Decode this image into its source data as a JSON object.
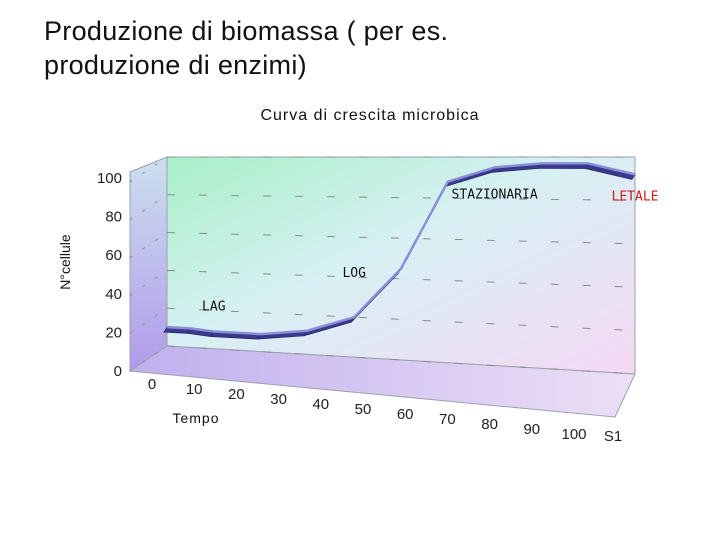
{
  "slide": {
    "title_line1": "Produzione di biomassa ( per es.",
    "title_line2": "produzione di enzimi)"
  },
  "colors": {
    "line_top": "#8a8ed8",
    "line_side": "#3a3a8c",
    "annotation_red": "#d21a1a"
  },
  "chart_data": {
    "type": "line",
    "title": "Curva di crescita microbica",
    "xlabel": "Tempo",
    "ylabel": "N°cellule",
    "series_label": "S1",
    "x_ticks": [
      "0",
      "10",
      "20",
      "30",
      "40",
      "50",
      "60",
      "70",
      "80",
      "90",
      "100"
    ],
    "y_ticks": [
      "0",
      "20",
      "40",
      "60",
      "80",
      "100"
    ],
    "xlim": [
      0,
      100
    ],
    "ylim": [
      0,
      100
    ],
    "grid": true,
    "x": [
      0,
      5,
      10,
      20,
      30,
      40,
      50,
      60,
      70,
      80,
      90,
      100
    ],
    "y": [
      10,
      10,
      9,
      9,
      12,
      20,
      45,
      88,
      95,
      97,
      97,
      92
    ],
    "annotations": [
      {
        "text": "LAG",
        "x": 10,
        "y": 20
      },
      {
        "text": "LOG",
        "x": 40,
        "y": 40
      },
      {
        "text": "STAZIONARIA",
        "x": 70,
        "y": 80
      },
      {
        "text": "LETALE",
        "x": 100,
        "y": 80
      }
    ]
  }
}
